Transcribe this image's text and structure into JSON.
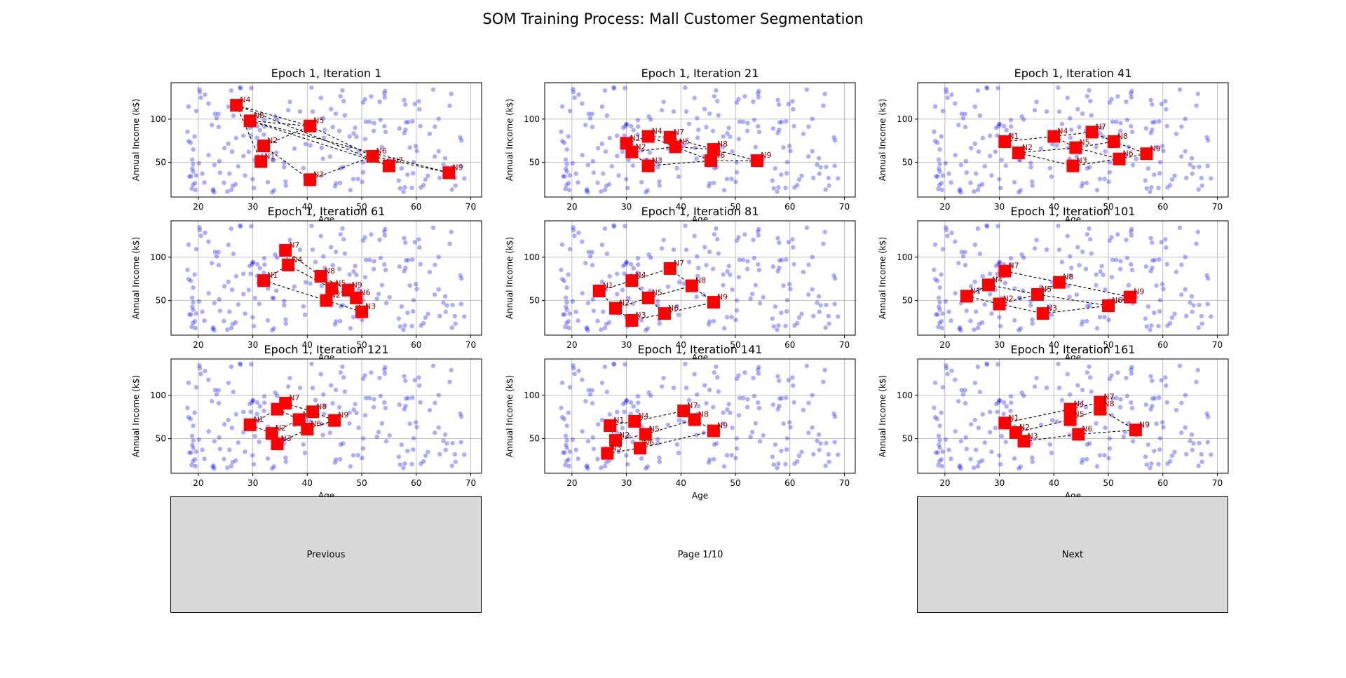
{
  "figure_title": "SOM Training Process: Mall Customer Segmentation",
  "controls": {
    "prev_label": "Previous",
    "next_label": "Next",
    "page_label": "Page 1/10"
  },
  "colors": {
    "customer_points": "#0000ff",
    "neurons": "#ff0000",
    "neuron_labels": "#8b0000",
    "grid_lines": "#000000"
  },
  "chart_data": [
    {
      "type": "scatter",
      "title": "Epoch 1, Iteration 1",
      "xlabel": "Age",
      "ylabel": "Annual Income (k$)",
      "xlim": [
        15,
        72
      ],
      "ylim": [
        10,
        142
      ],
      "xticks": [
        20,
        30,
        40,
        50,
        60,
        70
      ],
      "yticks": [
        50,
        100
      ],
      "grid": true,
      "neurons": [
        {
          "label": "N1",
          "x": 31.5,
          "y": 51
        },
        {
          "label": "N2",
          "x": 32,
          "y": 69
        },
        {
          "label": "N3",
          "x": 40.5,
          "y": 30
        },
        {
          "label": "N4",
          "x": 27,
          "y": 116
        },
        {
          "label": "N5",
          "x": 40.5,
          "y": 92
        },
        {
          "label": "N6",
          "x": 52,
          "y": 57
        },
        {
          "label": "N7",
          "x": 55,
          "y": 46
        },
        {
          "label": "N8",
          "x": 29.5,
          "y": 98
        },
        {
          "label": "N9",
          "x": 66,
          "y": 38
        }
      ]
    },
    {
      "type": "scatter",
      "title": "Epoch 1, Iteration 21",
      "xlabel": "Age",
      "ylabel": "Annual Income (k$)",
      "xlim": [
        15,
        72
      ],
      "ylim": [
        10,
        142
      ],
      "xticks": [
        20,
        30,
        40,
        50,
        60,
        70
      ],
      "yticks": [
        50,
        100
      ],
      "grid": true,
      "neurons": [
        {
          "label": "N1",
          "x": 30,
          "y": 72
        },
        {
          "label": "N2",
          "x": 31,
          "y": 62
        },
        {
          "label": "N3",
          "x": 34,
          "y": 46
        },
        {
          "label": "N4",
          "x": 34,
          "y": 80
        },
        {
          "label": "N5",
          "x": 39,
          "y": 68
        },
        {
          "label": "N6",
          "x": 45.5,
          "y": 52
        },
        {
          "label": "N7",
          "x": 38,
          "y": 79
        },
        {
          "label": "N8",
          "x": 46,
          "y": 65
        },
        {
          "label": "N9",
          "x": 54,
          "y": 52
        }
      ]
    },
    {
      "type": "scatter",
      "title": "Epoch 1, Iteration 41",
      "xlabel": "Age",
      "ylabel": "Annual Income (k$)",
      "xlim": [
        15,
        72
      ],
      "ylim": [
        10,
        142
      ],
      "xticks": [
        20,
        30,
        40,
        50,
        60,
        70
      ],
      "yticks": [
        50,
        100
      ],
      "grid": true,
      "neurons": [
        {
          "label": "N1",
          "x": 31,
          "y": 74
        },
        {
          "label": "N2",
          "x": 33.5,
          "y": 61
        },
        {
          "label": "N3",
          "x": 43.5,
          "y": 46
        },
        {
          "label": "N4",
          "x": 40,
          "y": 80
        },
        {
          "label": "N5",
          "x": 44,
          "y": 67
        },
        {
          "label": "N6",
          "x": 52,
          "y": 54
        },
        {
          "label": "N7",
          "x": 47,
          "y": 85
        },
        {
          "label": "N8",
          "x": 51,
          "y": 74
        },
        {
          "label": "N9",
          "x": 57,
          "y": 60
        }
      ]
    },
    {
      "type": "scatter",
      "title": "Epoch 1, Iteration 61",
      "xlabel": "Age",
      "ylabel": "Annual Income (k$)",
      "xlim": [
        15,
        72
      ],
      "ylim": [
        10,
        142
      ],
      "xticks": [
        20,
        30,
        40,
        50,
        60,
        70
      ],
      "yticks": [
        50,
        100
      ],
      "grid": true,
      "neurons": [
        {
          "label": "N1",
          "x": 32,
          "y": 73
        },
        {
          "label": "N2",
          "x": 43.5,
          "y": 50
        },
        {
          "label": "N3",
          "x": 50,
          "y": 37
        },
        {
          "label": "N4",
          "x": 36.5,
          "y": 91
        },
        {
          "label": "N5",
          "x": 44.5,
          "y": 64
        },
        {
          "label": "N6",
          "x": 49,
          "y": 53
        },
        {
          "label": "N7",
          "x": 36,
          "y": 108
        },
        {
          "label": "N8",
          "x": 42.5,
          "y": 78
        },
        {
          "label": "N9",
          "x": 47.5,
          "y": 62
        }
      ]
    },
    {
      "type": "scatter",
      "title": "Epoch 1, Iteration 81",
      "xlabel": "Age",
      "ylabel": "Annual Income (k$)",
      "xlim": [
        15,
        72
      ],
      "ylim": [
        10,
        142
      ],
      "xticks": [
        20,
        30,
        40,
        50,
        60,
        70
      ],
      "yticks": [
        50,
        100
      ],
      "grid": true,
      "neurons": [
        {
          "label": "N1",
          "x": 25,
          "y": 61
        },
        {
          "label": "N2",
          "x": 28,
          "y": 41
        },
        {
          "label": "N3",
          "x": 31,
          "y": 27
        },
        {
          "label": "N4",
          "x": 31,
          "y": 73
        },
        {
          "label": "N5",
          "x": 34,
          "y": 53
        },
        {
          "label": "N6",
          "x": 37,
          "y": 35
        },
        {
          "label": "N7",
          "x": 38,
          "y": 87
        },
        {
          "label": "N8",
          "x": 42,
          "y": 67
        },
        {
          "label": "N9",
          "x": 46,
          "y": 48
        }
      ]
    },
    {
      "type": "scatter",
      "title": "Epoch 1, Iteration 101",
      "xlabel": "Age",
      "ylabel": "Annual Income (k$)",
      "xlim": [
        15,
        72
      ],
      "ylim": [
        10,
        142
      ],
      "xticks": [
        20,
        30,
        40,
        50,
        60,
        70
      ],
      "yticks": [
        50,
        100
      ],
      "grid": true,
      "neurons": [
        {
          "label": "N1",
          "x": 24,
          "y": 55
        },
        {
          "label": "N2",
          "x": 30,
          "y": 46
        },
        {
          "label": "N3",
          "x": 38,
          "y": 35
        },
        {
          "label": "N4",
          "x": 28,
          "y": 68
        },
        {
          "label": "N5",
          "x": 37,
          "y": 57
        },
        {
          "label": "N6",
          "x": 50,
          "y": 44
        },
        {
          "label": "N7",
          "x": 31,
          "y": 84
        },
        {
          "label": "N8",
          "x": 41,
          "y": 71
        },
        {
          "label": "N9",
          "x": 54,
          "y": 54
        }
      ]
    },
    {
      "type": "scatter",
      "title": "Epoch 1, Iteration 121",
      "xlabel": "Age",
      "ylabel": "Annual Income (k$)",
      "xlim": [
        15,
        72
      ],
      "ylim": [
        10,
        142
      ],
      "xticks": [
        20,
        30,
        40,
        50,
        60,
        70
      ],
      "yticks": [
        50,
        100
      ],
      "grid": true,
      "neurons": [
        {
          "label": "N1",
          "x": 29.5,
          "y": 66
        },
        {
          "label": "N2",
          "x": 33.5,
          "y": 56
        },
        {
          "label": "N3",
          "x": 34.5,
          "y": 44
        },
        {
          "label": "N4",
          "x": 34.5,
          "y": 84
        },
        {
          "label": "N5",
          "x": 38.5,
          "y": 72
        },
        {
          "label": "N6",
          "x": 40,
          "y": 61
        },
        {
          "label": "N7",
          "x": 36,
          "y": 91
        },
        {
          "label": "N8",
          "x": 41,
          "y": 81
        },
        {
          "label": "N9",
          "x": 45,
          "y": 71
        }
      ]
    },
    {
      "type": "scatter",
      "title": "Epoch 1, Iteration 141",
      "xlabel": "Age",
      "ylabel": "Annual Income (k$)",
      "xlim": [
        15,
        72
      ],
      "ylim": [
        10,
        142
      ],
      "xticks": [
        20,
        30,
        40,
        50,
        60,
        70
      ],
      "yticks": [
        50,
        100
      ],
      "grid": true,
      "neurons": [
        {
          "label": "N1",
          "x": 27,
          "y": 65
        },
        {
          "label": "N2",
          "x": 28,
          "y": 48
        },
        {
          "label": "N3",
          "x": 26.5,
          "y": 33
        },
        {
          "label": "N4",
          "x": 31.5,
          "y": 70
        },
        {
          "label": "N5",
          "x": 33.5,
          "y": 55
        },
        {
          "label": "N6",
          "x": 32.5,
          "y": 39
        },
        {
          "label": "N7",
          "x": 40.5,
          "y": 82
        },
        {
          "label": "N8",
          "x": 42.5,
          "y": 72
        },
        {
          "label": "N9",
          "x": 46,
          "y": 59
        }
      ]
    },
    {
      "type": "scatter",
      "title": "Epoch 1, Iteration 161",
      "xlabel": "Age",
      "ylabel": "Annual Income (k$)",
      "xlim": [
        15,
        72
      ],
      "ylim": [
        10,
        142
      ],
      "xticks": [
        20,
        30,
        40,
        50,
        60,
        70
      ],
      "yticks": [
        50,
        100
      ],
      "grid": true,
      "neurons": [
        {
          "label": "N1",
          "x": 31,
          "y": 68
        },
        {
          "label": "N2",
          "x": 33,
          "y": 57
        },
        {
          "label": "N3",
          "x": 34.5,
          "y": 47
        },
        {
          "label": "N4",
          "x": 43,
          "y": 84
        },
        {
          "label": "N5",
          "x": 43,
          "y": 72
        },
        {
          "label": "N6",
          "x": 44.5,
          "y": 55
        },
        {
          "label": "N7",
          "x": 48.5,
          "y": 92
        },
        {
          "label": "N8",
          "x": 48.5,
          "y": 84
        },
        {
          "label": "N9",
          "x": 55,
          "y": 60
        }
      ]
    }
  ]
}
